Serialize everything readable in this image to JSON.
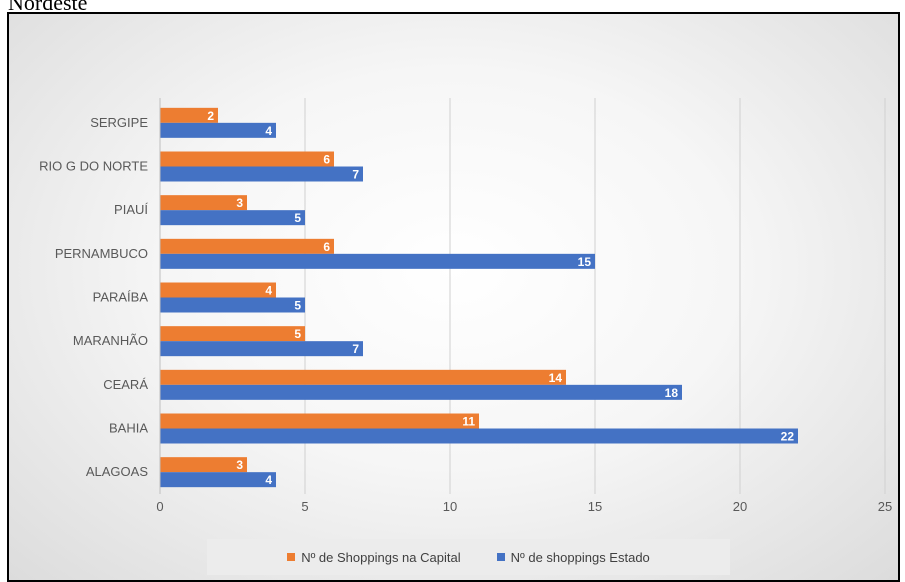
{
  "header_text": "Nordeste",
  "colors": {
    "capital": "#ED7D31",
    "estado": "#4472C4"
  },
  "chart_data": {
    "type": "bar",
    "orientation": "horizontal",
    "categories": [
      "ALAGOAS",
      "BAHIA",
      "CEARÁ",
      "MARANHÃO",
      "PARAÍBA",
      "PERNAMBUCO",
      "PIAUÍ",
      "RIO G DO NORTE",
      "SERGIPE"
    ],
    "series": [
      {
        "name": "Nº de Shoppings na Capital",
        "values": [
          3,
          11,
          14,
          5,
          4,
          6,
          3,
          6,
          2
        ]
      },
      {
        "name": "Nº de shoppings Estado",
        "values": [
          4,
          22,
          18,
          7,
          5,
          15,
          5,
          7,
          4
        ]
      }
    ],
    "xlim": [
      0,
      25
    ],
    "xticks": [
      0,
      5,
      10,
      15,
      20,
      25
    ],
    "grid": true,
    "legend_position": "bottom",
    "data_labels": true
  }
}
